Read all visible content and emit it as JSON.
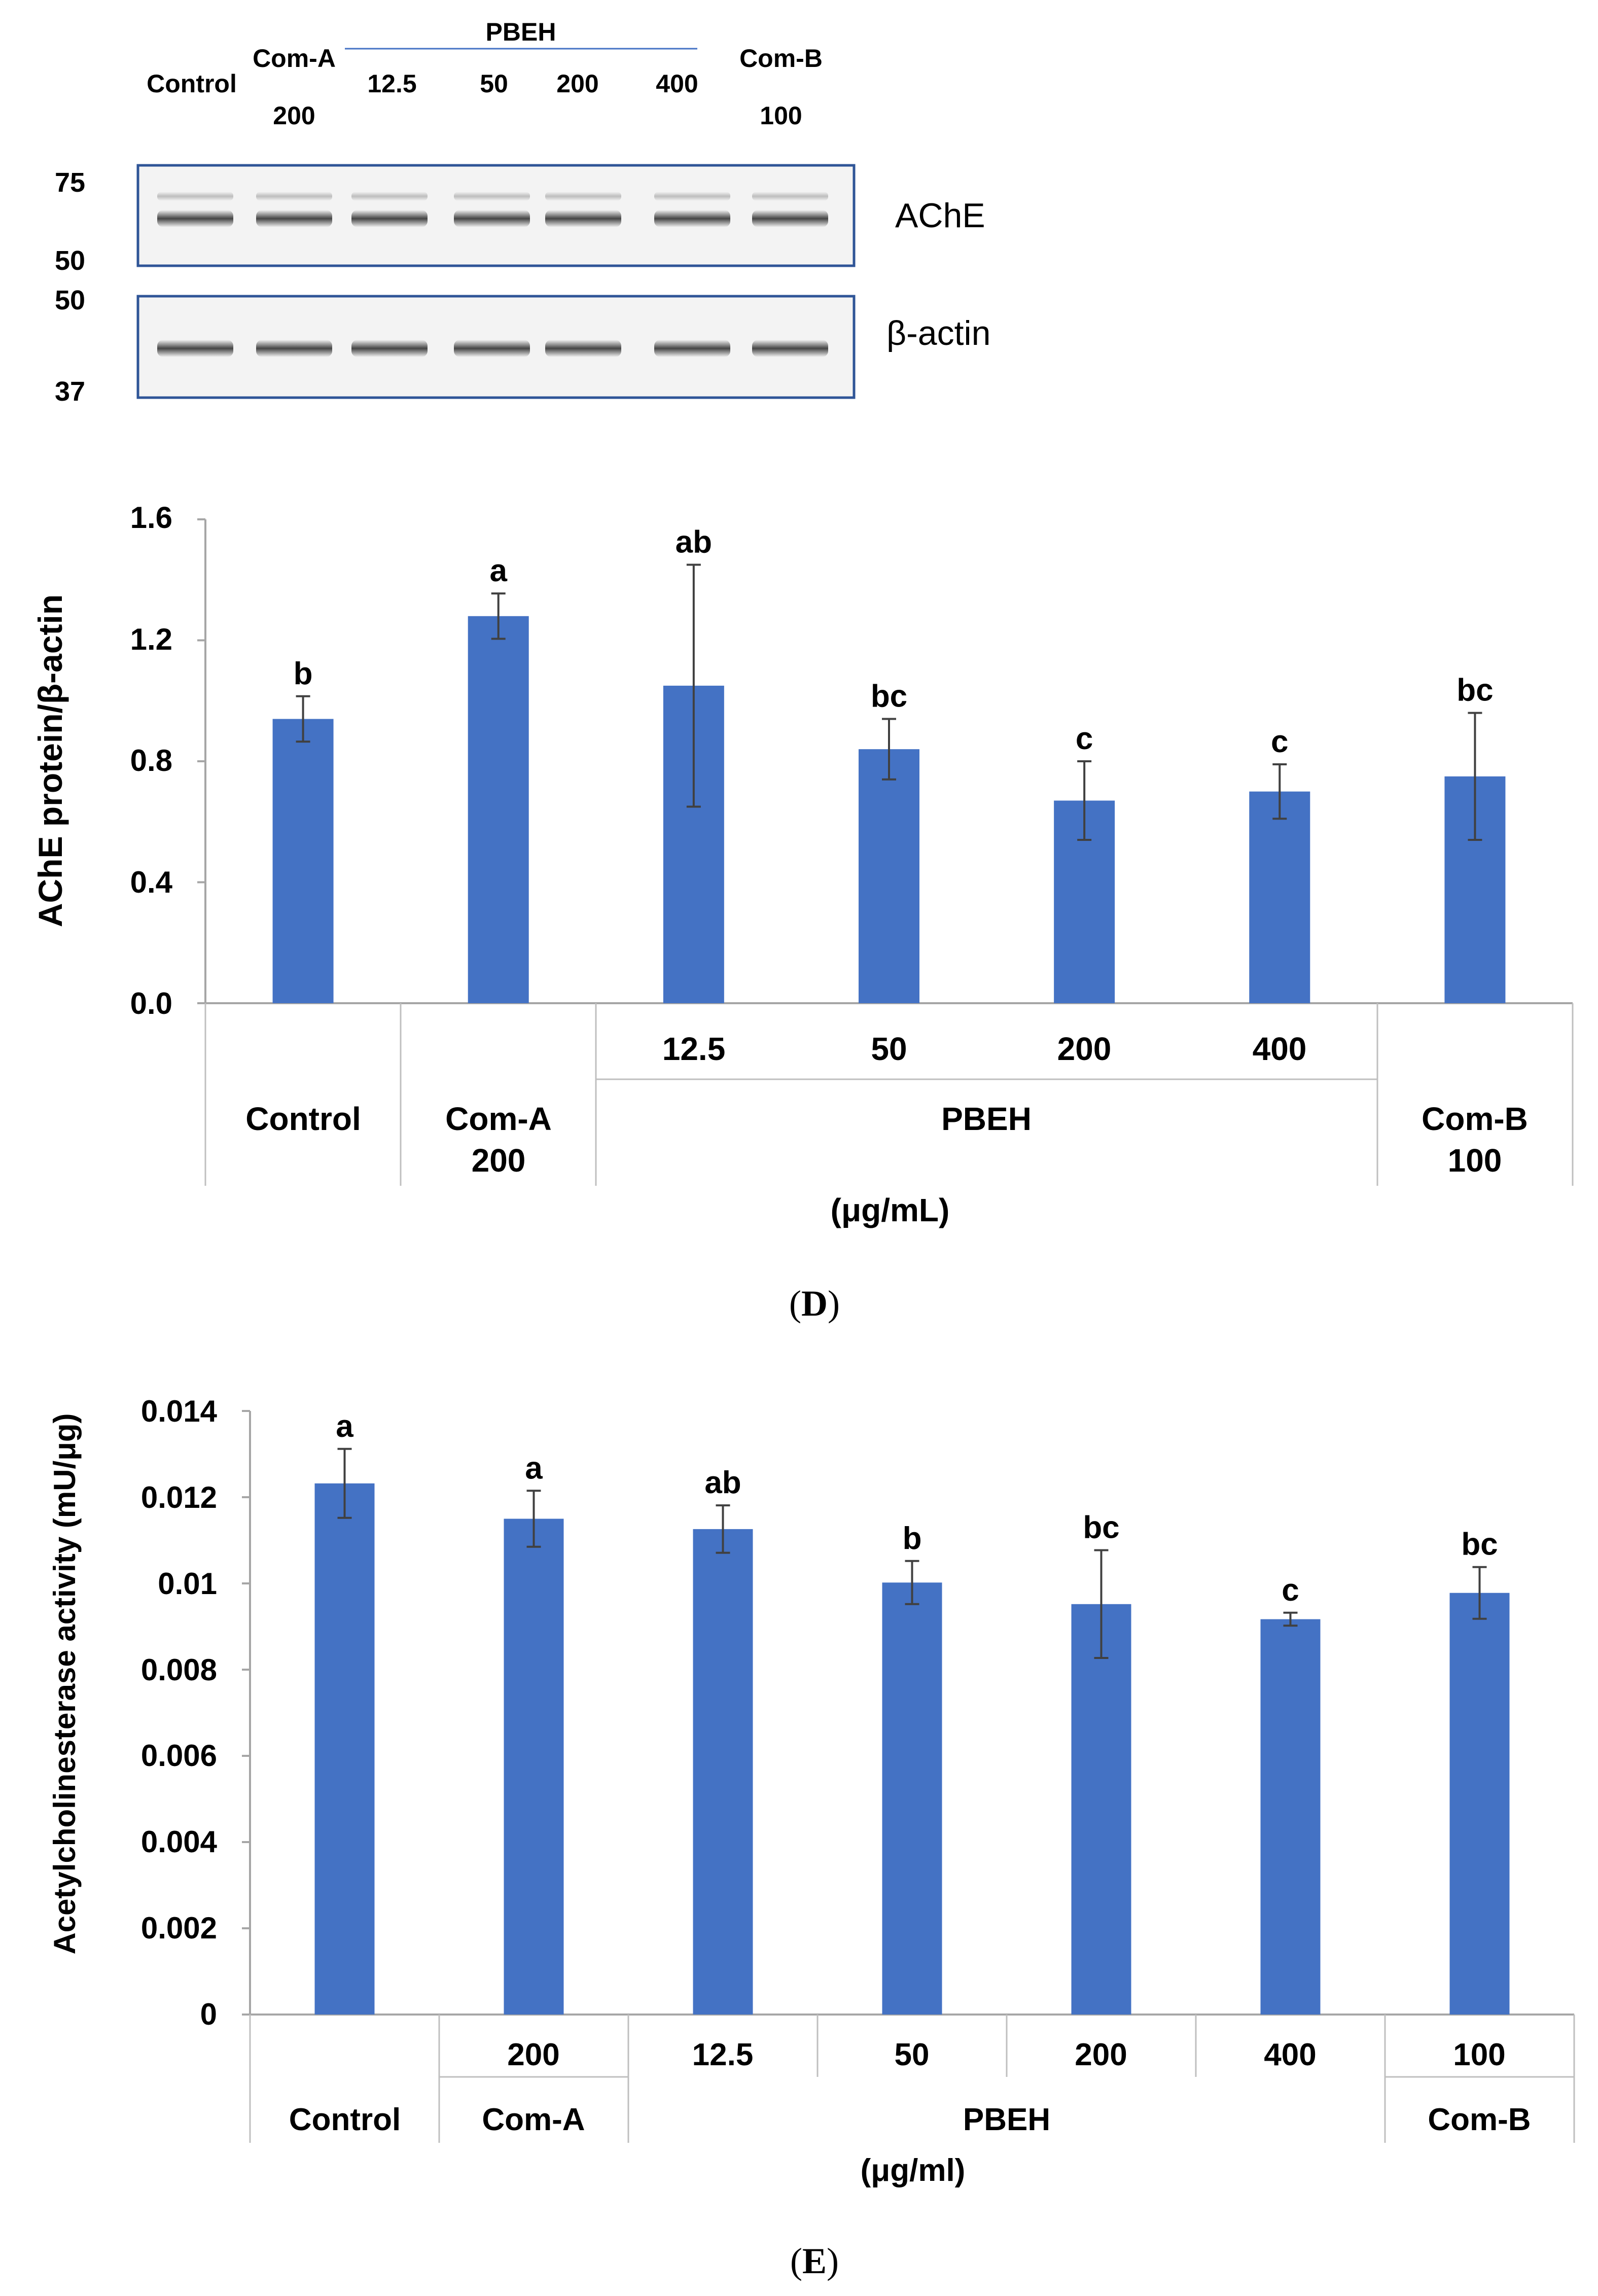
{
  "blot": {
    "lane_labels": {
      "control": "Control",
      "coma_name": "Com-A",
      "coma_dose": "200",
      "pbeh_header": "PBEH",
      "pbeh_doses": [
        "12.5",
        "50",
        "200",
        "400"
      ],
      "comb_name": "Com-B",
      "comb_dose": "100"
    },
    "ache_panel": {
      "label": "AChE",
      "marker_top": "75",
      "marker_bottom": "50"
    },
    "actin_panel": {
      "label": "β-actin",
      "marker_top": "50",
      "marker_bottom": "37"
    }
  },
  "chart_data": [
    {
      "type": "bar",
      "panel_label": "(D)",
      "panel_letter": "D",
      "categories": [
        "Control",
        "Com-A 200",
        "12.5",
        "50",
        "200",
        "400",
        "Com-B 100"
      ],
      "values": [
        0.94,
        1.28,
        1.05,
        0.84,
        0.67,
        0.7,
        0.75
      ],
      "errors": [
        0.075,
        0.075,
        0.4,
        0.1,
        0.13,
        0.09,
        0.21
      ],
      "sig_letters": [
        "b",
        "a",
        "ab",
        "bc",
        "c",
        "c",
        "bc"
      ],
      "ylabel": "AChE protein/β-actin",
      "yticks": [
        "0.0",
        "0.4",
        "0.8",
        "1.2",
        "1.6"
      ],
      "ylim": [
        0,
        1.6
      ],
      "axis_labels": {
        "row1": [
          "",
          "",
          "12.5",
          "50",
          "200",
          "400",
          ""
        ],
        "control": "Control",
        "coma_name": "Com-A",
        "coma_dose": "200",
        "pbeh": "PBEH",
        "comb_name": "Com-B",
        "comb_dose": "100"
      },
      "xlabel": "(μg/mL)",
      "bar_color": "#4472C4"
    },
    {
      "type": "bar",
      "panel_label": "(E)",
      "panel_letter": "E",
      "categories": [
        "Control",
        "Com-A 200",
        "12.5",
        "50",
        "200",
        "400",
        "Com-B 100"
      ],
      "values": [
        0.01232,
        0.0115,
        0.01126,
        0.01002,
        0.00952,
        0.00917,
        0.00978
      ],
      "errors": [
        0.0008,
        0.00065,
        0.00055,
        0.0005,
        0.00125,
        0.00015,
        0.0006
      ],
      "sig_letters": [
        "a",
        "a",
        "ab",
        "b",
        "bc",
        "c",
        "bc"
      ],
      "ylabel": "Acetylcholinesterase activity (mU/μg)",
      "yticks": [
        "0",
        "0.002",
        "0.004",
        "0.006",
        "0.008",
        "0.01",
        "0.012",
        "0.014"
      ],
      "ylim": [
        0,
        0.014
      ],
      "axis_labels": {
        "row1": [
          "",
          "200",
          "12.5",
          "50",
          "200",
          "400",
          "100"
        ],
        "control": "Control",
        "coma_name": "Com-A",
        "pbeh": "PBEH",
        "comb_name": "Com-B"
      },
      "xlabel": "(μg/ml)",
      "bar_color": "#4472C4"
    }
  ]
}
